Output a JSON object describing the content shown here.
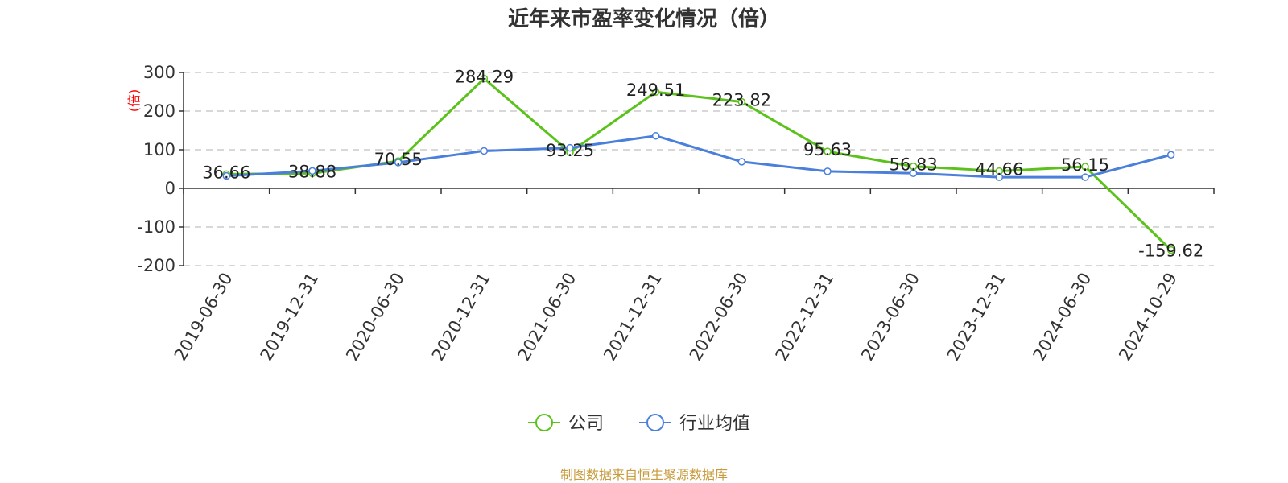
{
  "chart_data": {
    "type": "line",
    "title": "近年来市盈率变化情况（倍）",
    "ylabel": "(倍)",
    "ylim": [
      -200,
      300
    ],
    "yticks": [
      300,
      200,
      100,
      0,
      -100,
      -200
    ],
    "categories": [
      "2019-06-30",
      "2019-12-31",
      "2020-06-30",
      "2020-12-31",
      "2021-06-30",
      "2021-12-31",
      "2022-06-30",
      "2022-12-31",
      "2023-06-30",
      "2023-12-31",
      "2024-06-30",
      "2024-10-29"
    ],
    "grid": true,
    "legend_position": "bottom-center",
    "series": [
      {
        "name": "公司",
        "color": "#5bc21c",
        "values": [
          36.66,
          38.88,
          70.55,
          284.29,
          93.25,
          249.51,
          223.82,
          95.63,
          56.83,
          44.66,
          56.15,
          -159.62
        ],
        "labels": [
          "36.66",
          "38.88",
          "70.55",
          "284.29",
          "93.25",
          "249.51",
          "223.82",
          "95.63",
          "56.83",
          "44.66",
          "56.15",
          "-159.62"
        ]
      },
      {
        "name": "行业均值",
        "color": "#4a7fdc",
        "values": [
          32,
          45,
          67,
          97,
          105,
          136,
          69,
          44,
          39,
          29,
          29,
          87
        ]
      }
    ],
    "source": "制图数据来自恒生聚源数据库"
  }
}
